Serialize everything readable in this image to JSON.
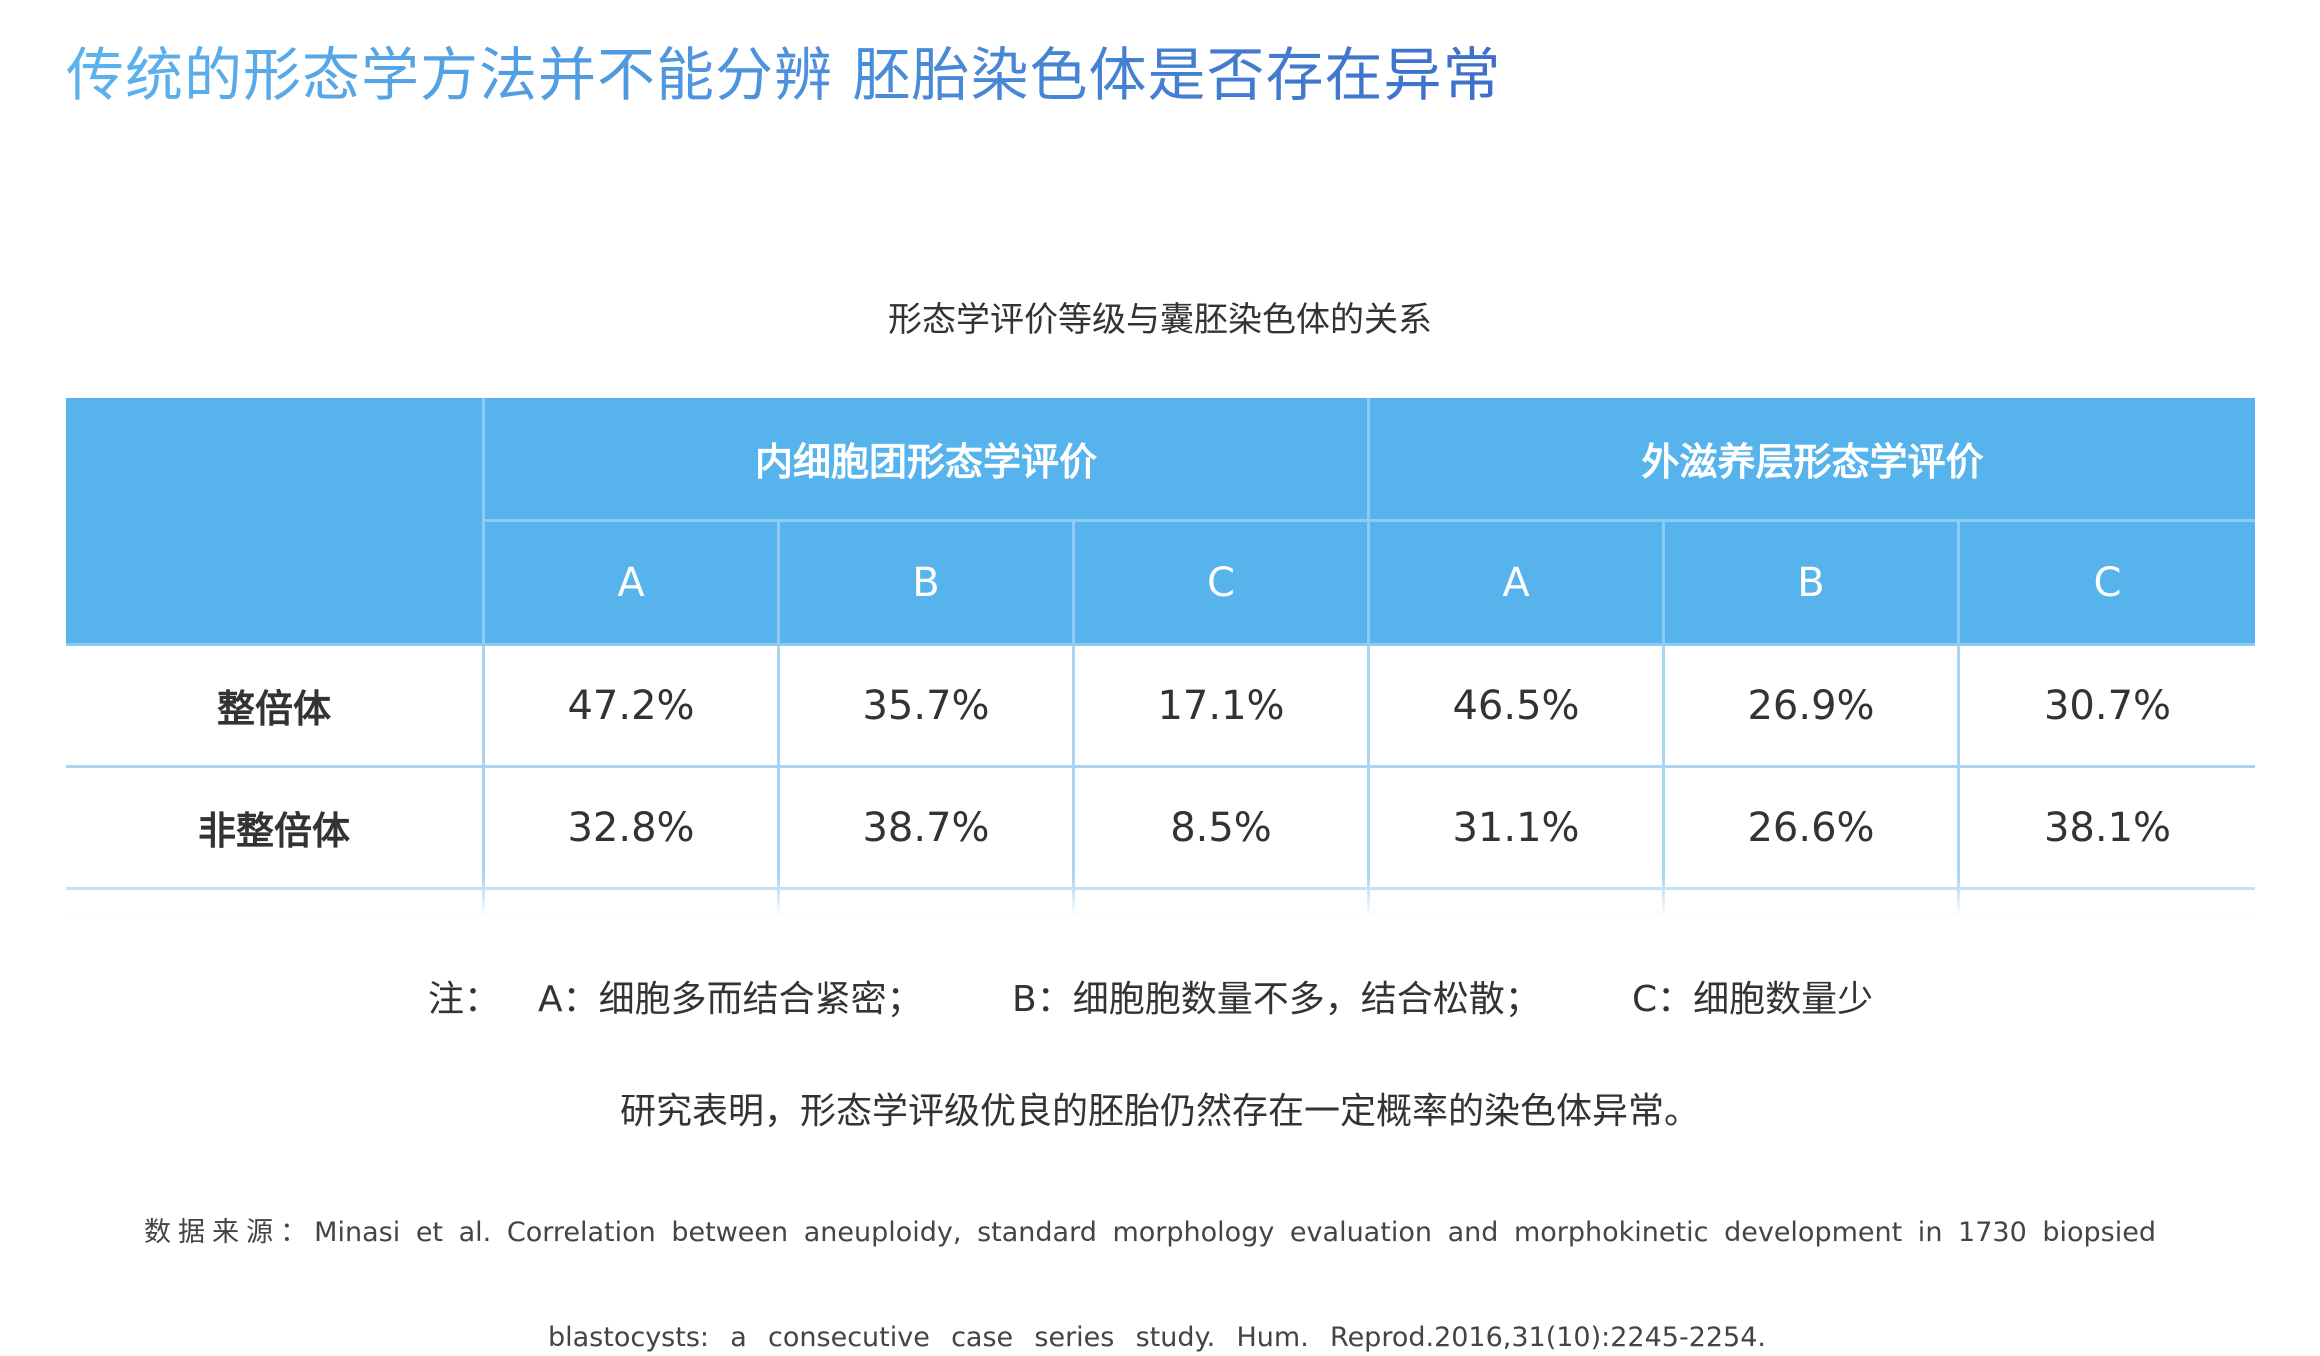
{
  "heading": "传统的形态学方法并不能分辨 胚胎染色体是否存在异常",
  "table_caption": "形态学评价等级与囊胚染色体的关系",
  "table": {
    "corner": "",
    "groups": [
      "内细胞团形态学评价",
      "外滋养层形态学评价"
    ],
    "columns": [
      "A",
      "B",
      "C",
      "A",
      "B",
      "C"
    ],
    "rows": [
      {
        "label": "整倍体",
        "cells": [
          "47.2%",
          "35.7%",
          "17.1%",
          "46.5%",
          "26.9%",
          "30.7%"
        ]
      },
      {
        "label": "非整倍体",
        "cells": [
          "32.8%",
          "38.7%",
          "8.5%",
          "31.1%",
          "26.6%",
          "38.1%"
        ]
      }
    ]
  },
  "note": {
    "prefix": "注：",
    "a": "A：细胞多而结合紧密；",
    "b": "B：细胞胞数量不多，结合松散；",
    "c": "C：细胞数量少"
  },
  "summary": "研究表明，形态学评级优良的胚胎仍然存在一定概率的染色体异常。",
  "source": {
    "line1": "数据来源：Minasi et al. Correlation between aneuploidy, standard morphology evaluation and morphokinetic development in 1730 biopsied",
    "line2": "blastocysts: a consecutive case series study. Hum. Reprod.2016,31(10):2245-2254."
  },
  "colors": {
    "heading_gradient_start": "#5cb3ee",
    "heading_gradient_end": "#3c6fc9",
    "header_fill": "#56b3ec",
    "grid_line": "#a9d4f2"
  }
}
